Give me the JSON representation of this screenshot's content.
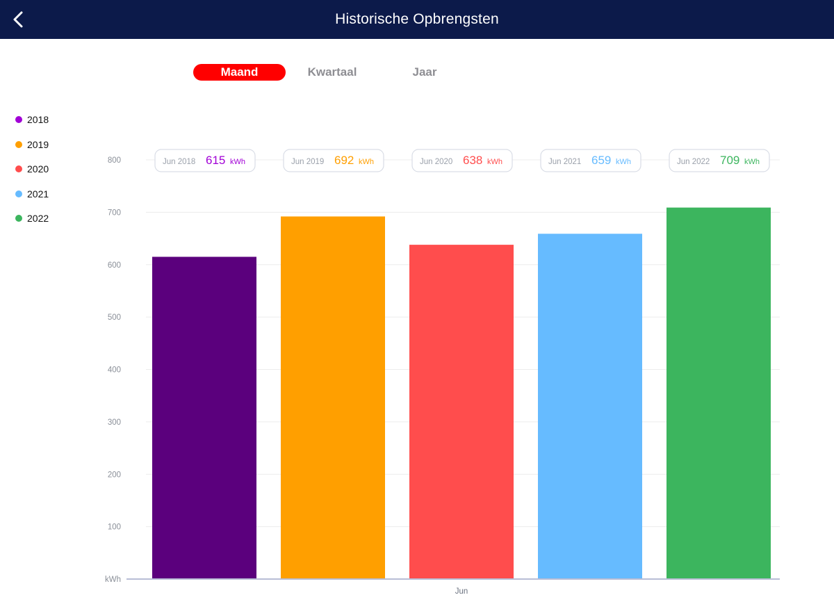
{
  "header": {
    "title": "Historische Opbrengsten",
    "back_icon": "chevron-left-icon",
    "background_color": "#0c1a4a"
  },
  "tabs": [
    {
      "label": "Maand",
      "active": true
    },
    {
      "label": "Kwartaal",
      "active": false
    },
    {
      "label": "Jaar",
      "active": false
    }
  ],
  "legend": [
    {
      "label": "2018",
      "color": "#a100d6"
    },
    {
      "label": "2019",
      "color": "#ff9f00"
    },
    {
      "label": "2020",
      "color": "#ff4d4d"
    },
    {
      "label": "2021",
      "color": "#66bbff"
    },
    {
      "label": "2022",
      "color": "#3cb55e"
    }
  ],
  "chart_data": {
    "type": "bar",
    "categories": [
      "Jun"
    ],
    "ylabel": "kWh",
    "ylim": [
      0,
      800
    ],
    "yticks": [
      100,
      200,
      300,
      400,
      500,
      600,
      700,
      800
    ],
    "grid": true,
    "unit": "kWh",
    "series": [
      {
        "name": "2018",
        "period": "Jun 2018",
        "value": 615,
        "color": "#5b007d",
        "label_color": "#a100d6"
      },
      {
        "name": "2019",
        "period": "Jun 2019",
        "value": 692,
        "color": "#ff9f00",
        "label_color": "#ff9f00"
      },
      {
        "name": "2020",
        "period": "Jun 2020",
        "value": 638,
        "color": "#ff4d4d",
        "label_color": "#ff4d4d"
      },
      {
        "name": "2021",
        "period": "Jun 2021",
        "value": 659,
        "color": "#66bbff",
        "label_color": "#66bbff"
      },
      {
        "name": "2022",
        "period": "Jun 2022",
        "value": 709,
        "color": "#3cb55e",
        "label_color": "#3cb55e"
      }
    ]
  }
}
